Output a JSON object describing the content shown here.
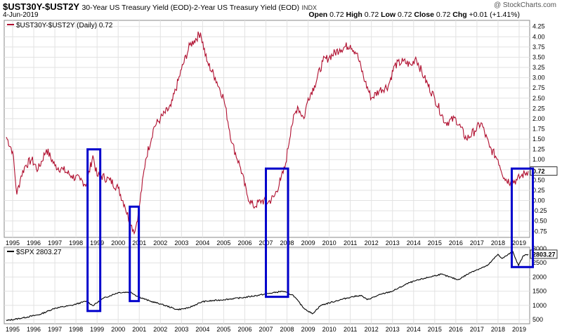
{
  "header": {
    "symbol": "$UST30Y-$UST2Y",
    "description": "30-Year US Treasury Yield (EOD)-2-Year US Treasury Yield (EOD)",
    "exchange": "INDX",
    "date": "4-Jun-2019",
    "brand": "@ StockCharts.com",
    "open_label": "Open",
    "open": "0.72",
    "high_label": "High",
    "high": "0.72",
    "low_label": "Low",
    "low": "0.72",
    "close_label": "Close",
    "close": "0.72",
    "chg_label": "Chg",
    "chg": "+0.01 (+1.41%)"
  },
  "colors": {
    "spread": "#b01030",
    "spx": "#000000",
    "box": "#0000cc",
    "grid": "#e2e2e2"
  },
  "chart_data": [
    {
      "type": "line",
      "title": "$UST30Y-$UST2Y (Daily) 0.72",
      "legend": "$UST30Y-$UST2Y (Daily) 0.72",
      "last_value_label": "0.72",
      "x_ticks": [
        "1995",
        "1996",
        "1997",
        "1998",
        "1999",
        "2000",
        "2001",
        "2002",
        "2003",
        "2004",
        "2005",
        "2006",
        "2007",
        "2008",
        "2009",
        "2010",
        "2011",
        "2012",
        "2013",
        "2014",
        "2015",
        "2016",
        "2017",
        "2018",
        "2019"
      ],
      "y_ticks": [
        "-0.75",
        "-0.50",
        "-0.25",
        "0.00",
        "0.25",
        "0.50",
        "0.75",
        "1.00",
        "1.25",
        "1.50",
        "1.75",
        "2.00",
        "2.25",
        "2.50",
        "2.75",
        "3.00",
        "3.25",
        "3.50",
        "3.75",
        "4.00",
        "4.25"
      ],
      "ylim": [
        -0.9,
        4.4
      ],
      "xlim": [
        1994.6,
        2019.5
      ],
      "x": [
        1994.7,
        1995.0,
        1995.2,
        1995.4,
        1995.6,
        1995.9,
        1996.2,
        1996.6,
        1997.0,
        1997.4,
        1997.8,
        1998.2,
        1998.5,
        1998.8,
        1999.0,
        1999.2,
        1999.6,
        2000.0,
        2000.3,
        2000.6,
        2000.8,
        2001.0,
        2001.3,
        2001.7,
        2002.0,
        2002.5,
        2003.0,
        2003.4,
        2003.6,
        2003.9,
        2004.2,
        2004.6,
        2005.0,
        2005.4,
        2005.8,
        2006.1,
        2006.4,
        2006.8,
        2007.1,
        2007.4,
        2007.7,
        2007.9,
        2008.2,
        2008.5,
        2008.8,
        2009.0,
        2009.3,
        2009.7,
        2010.0,
        2010.5,
        2011.0,
        2011.3,
        2011.7,
        2012.0,
        2012.4,
        2012.8,
        2013.1,
        2013.5,
        2013.9,
        2014.1,
        2014.5,
        2015.0,
        2015.5,
        2016.0,
        2016.5,
        2016.9,
        2017.2,
        2017.6,
        2018.0,
        2018.3,
        2018.6,
        2018.9,
        2019.1,
        2019.43
      ],
      "values": [
        1.55,
        1.2,
        0.15,
        0.6,
        0.85,
        1.0,
        0.75,
        1.25,
        0.85,
        0.75,
        0.6,
        0.5,
        0.4,
        1.1,
        0.6,
        0.6,
        0.5,
        0.3,
        -0.1,
        -0.6,
        -0.75,
        -0.15,
        1.0,
        1.8,
        2.0,
        2.3,
        3.2,
        3.8,
        3.9,
        4.1,
        3.4,
        3.0,
        2.5,
        1.4,
        0.8,
        0.15,
        -0.15,
        0.0,
        -0.05,
        0.1,
        0.5,
        0.8,
        1.8,
        2.3,
        2.0,
        2.5,
        2.8,
        3.4,
        3.5,
        3.7,
        3.8,
        3.6,
        2.9,
        2.5,
        2.7,
        2.8,
        3.3,
        3.4,
        3.3,
        3.5,
        3.0,
        2.5,
        1.9,
        2.0,
        1.5,
        1.7,
        1.9,
        1.3,
        1.0,
        0.55,
        0.45,
        0.5,
        0.6,
        0.72
      ],
      "highlight_boxes_years": [
        [
          1998.55,
          1999.15
        ],
        [
          2000.55,
          2000.98
        ],
        [
          2007.0,
          2008.05
        ],
        [
          2018.65,
          2019.65
        ]
      ]
    },
    {
      "type": "line",
      "title": "$SPX 2803.27",
      "legend": "$SPX 2803.27",
      "last_value_label": "2803.27",
      "x_ticks": [
        "1995",
        "1996",
        "1997",
        "1998",
        "1999",
        "2000",
        "2001",
        "2002",
        "2003",
        "2004",
        "2005",
        "2006",
        "2007",
        "2008",
        "2009",
        "2010",
        "2011",
        "2012",
        "2013",
        "2014",
        "2015",
        "2016",
        "2017",
        "2018",
        "2019"
      ],
      "y_ticks": [
        "500",
        "1000",
        "1500",
        "2000",
        "2500",
        "3000"
      ],
      "ylim": [
        350,
        3050
      ],
      "x": [
        1994.7,
        1995.5,
        1996.3,
        1997.0,
        1997.8,
        1998.5,
        1998.8,
        1999.3,
        2000.0,
        2000.6,
        2000.9,
        2001.5,
        2002.0,
        2002.8,
        2003.3,
        2004.0,
        2005.0,
        2006.0,
        2007.0,
        2007.8,
        2008.3,
        2008.8,
        2009.2,
        2009.6,
        2010.3,
        2011.0,
        2011.5,
        2011.8,
        2012.5,
        2013.0,
        2013.8,
        2014.5,
        2015.3,
        2016.1,
        2016.8,
        2017.5,
        2018.0,
        2018.2,
        2018.7,
        2018.97,
        2019.2,
        2019.43
      ],
      "values": [
        460,
        560,
        680,
        900,
        1000,
        1150,
        990,
        1250,
        1450,
        1470,
        1320,
        1150,
        1050,
        850,
        900,
        1130,
        1200,
        1280,
        1400,
        1500,
        1350,
        900,
        700,
        1000,
        1150,
        1290,
        1350,
        1200,
        1400,
        1500,
        1800,
        1950,
        2100,
        1900,
        2200,
        2400,
        2800,
        2650,
        2900,
        2400,
        2750,
        2803.27
      ],
      "highlight_boxes_years": [
        [
          1998.55,
          1999.15
        ],
        [
          2000.55,
          2000.98
        ],
        [
          2007.0,
          2008.05
        ],
        [
          2018.65,
          2019.65
        ]
      ]
    }
  ]
}
